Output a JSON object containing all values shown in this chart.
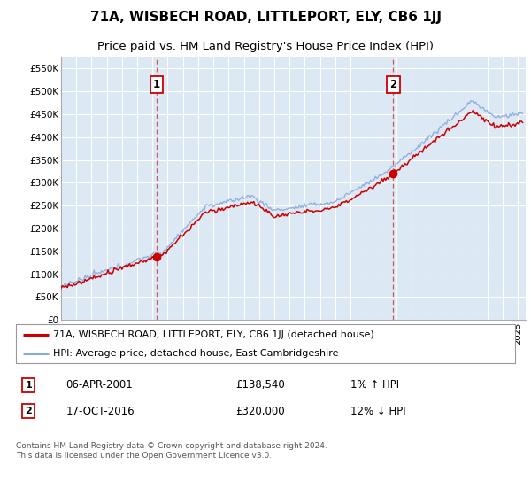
{
  "title": "71A, WISBECH ROAD, LITTLEPORT, ELY, CB6 1JJ",
  "subtitle": "Price paid vs. HM Land Registry's House Price Index (HPI)",
  "ylabel_ticks": [
    "£0",
    "£50K",
    "£100K",
    "£150K",
    "£200K",
    "£250K",
    "£300K",
    "£350K",
    "£400K",
    "£450K",
    "£500K",
    "£550K"
  ],
  "ytick_values": [
    0,
    50000,
    100000,
    150000,
    200000,
    250000,
    300000,
    350000,
    400000,
    450000,
    500000,
    550000
  ],
  "ylim": [
    0,
    575000
  ],
  "xlim_start": 1995.0,
  "xlim_end": 2025.5,
  "background_color": "#dce9f5",
  "grid_color": "#ffffff",
  "line_color_property": "#cc0000",
  "line_color_hpi": "#88aadd",
  "sale1_x": 2001.27,
  "sale1_y": 138540,
  "sale1_label": "1",
  "sale1_date": "06-APR-2001",
  "sale1_price": "£138,540",
  "sale1_hpi": "1% ↑ HPI",
  "sale2_x": 2016.8,
  "sale2_y": 320000,
  "sale2_label": "2",
  "sale2_date": "17-OCT-2016",
  "sale2_price": "£320,000",
  "sale2_hpi": "12% ↓ HPI",
  "legend_property": "71A, WISBECH ROAD, LITTLEPORT, ELY, CB6 1JJ (detached house)",
  "legend_hpi": "HPI: Average price, detached house, East Cambridgeshire",
  "footer": "Contains HM Land Registry data © Crown copyright and database right 2024.\nThis data is licensed under the Open Government Licence v3.0."
}
